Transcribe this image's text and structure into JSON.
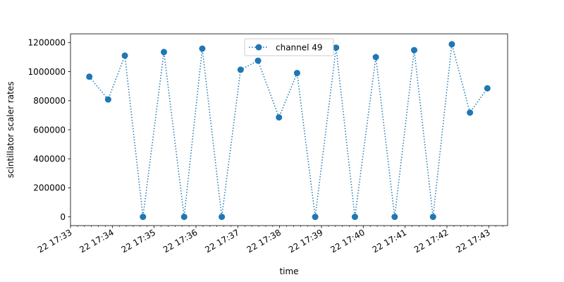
{
  "chart_data": {
    "type": "line",
    "xlabel": "time",
    "ylabel": "scintillator scaler rates",
    "x_ticks": [
      "22 17:33",
      "22 17:34",
      "22 17:35",
      "22 17:36",
      "22 17:37",
      "22 17:38",
      "22 17:39",
      "22 17:40",
      "22 17:41",
      "22 17:42",
      "22 17:43"
    ],
    "y_ticks": [
      0,
      200000,
      400000,
      600000,
      800000,
      1000000,
      1200000
    ],
    "y_tick_labels": [
      "0",
      "200000",
      "400000",
      "600000",
      "800000",
      "1000000",
      "1200000"
    ],
    "xlim": [
      "22 17:33:00",
      "22 17:43:27"
    ],
    "ylim": [
      -60000,
      1260000
    ],
    "grid": false,
    "legend_position": "top-center",
    "line_style": "dotted",
    "marker": "circle",
    "series": [
      {
        "name": "channel 49",
        "color": "#1f77b4",
        "x": [
          "22 17:33:27",
          "22 17:33:54",
          "22 17:34:18",
          "22 17:34:44",
          "22 17:35:14",
          "22 17:35:43",
          "22 17:36:09",
          "22 17:36:37",
          "22 17:37:04",
          "22 17:37:29",
          "22 17:37:59",
          "22 17:38:25",
          "22 17:38:51",
          "22 17:39:21",
          "22 17:39:48",
          "22 17:40:18",
          "22 17:40:45",
          "22 17:41:13",
          "22 17:41:40",
          "22 17:42:07",
          "22 17:42:33",
          "22 17:42:58"
        ],
        "values": [
          965000,
          808000,
          1110000,
          0,
          1135000,
          0,
          1158000,
          0,
          1013000,
          1075000,
          685000,
          990000,
          0,
          1165000,
          0,
          1100000,
          0,
          1148000,
          0,
          1188000,
          718000,
          885000
        ]
      }
    ]
  }
}
